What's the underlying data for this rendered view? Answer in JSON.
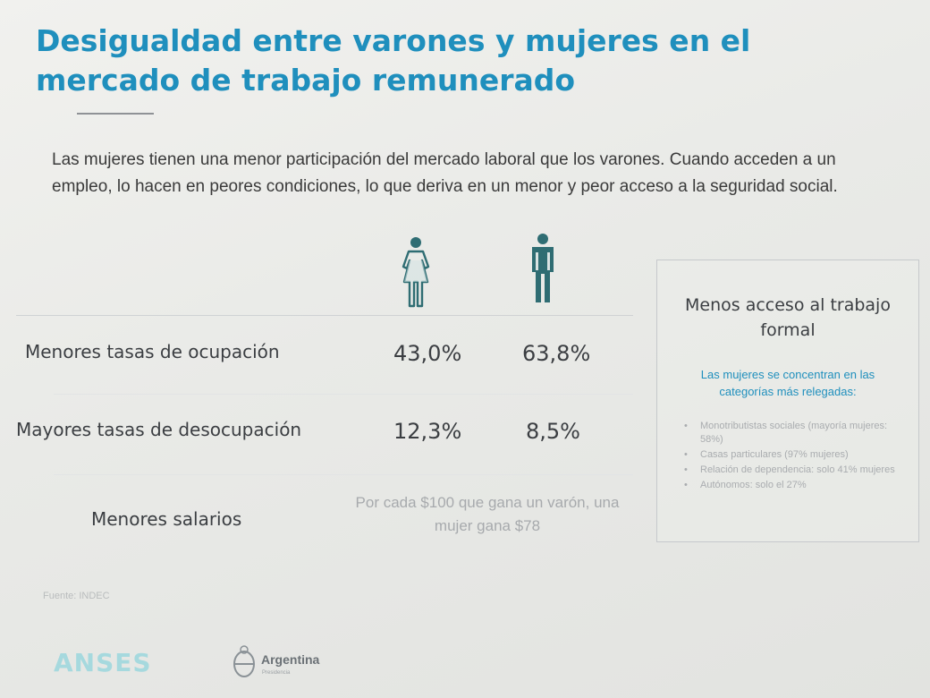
{
  "title": "Desigualdad entre varones y mujeres en el mercado de trabajo remunerado",
  "intro": "Las mujeres tienen una menor participación del mercado laboral que los varones. Cuando acceden a un empleo, lo hacen en peores condiciones, lo que deriva en un menor y peor acceso a la seguridad social.",
  "icons": {
    "woman": "woman-icon",
    "man": "man-icon"
  },
  "rows": [
    {
      "label": "Menores tasas de ocupación",
      "women": "43,0%",
      "men": "63,8%"
    },
    {
      "label": "Mayores tasas de desocupación",
      "women": "12,3%",
      "men": "8,5%"
    },
    {
      "label": "Menores salarios",
      "note": "Por cada $100 que gana un varón, una mujer gana $78"
    }
  ],
  "panel": {
    "title": "Menos acceso al trabajo formal",
    "subtitle": "Las mujeres se concentran en las categorías más relegadas:",
    "items": [
      "Monotributistas sociales (mayoría mujeres: 58%)",
      "Casas particulares (97% mujeres)",
      "Relación de dependencia: solo 41% mujeres",
      "Autónomos: solo el 27%"
    ]
  },
  "source": "Fuente: INDEC",
  "footer": {
    "anses": "ANSES",
    "argentina": "Argentina",
    "argentina_sub": "Presidencia"
  },
  "colors": {
    "accent": "#1f8fbd",
    "text": "#3b3e42",
    "icon": "#2f6d73",
    "muted": "#a7aaad"
  }
}
